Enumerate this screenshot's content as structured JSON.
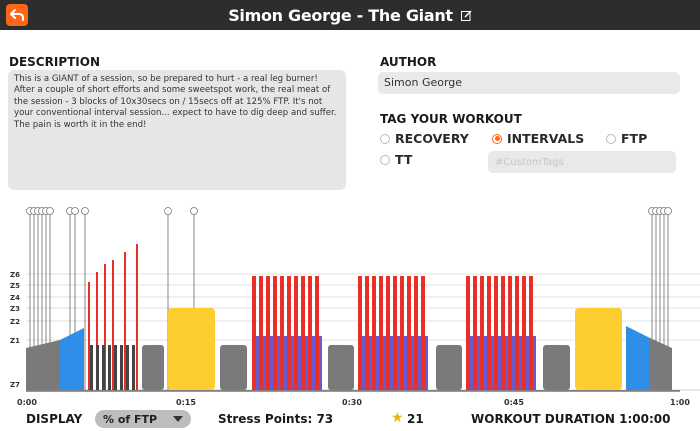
{
  "header": {
    "title": "Simon George - The Giant",
    "back_icon": "back-arrow-icon",
    "edit_icon": "edit-icon"
  },
  "description": {
    "heading": "DESCRIPTION",
    "text": "This is a GIANT of a session, so be prepared to hurt - a real leg burner! After a couple of short efforts and some sweetspot work, the real meat of the session - 3 blocks of 10x30secs on / 15secs off at 125% FTP. It's not your conventional interval session... expect to have to dig deep and suffer. The pain is worth it in the end!"
  },
  "author": {
    "heading": "AUTHOR",
    "value": "Simon George"
  },
  "tags": {
    "heading": "TAG YOUR WORKOUT",
    "options": [
      {
        "label": "RECOVERY",
        "selected": false
      },
      {
        "label": "INTERVALS",
        "selected": true
      },
      {
        "label": "FTP",
        "selected": false
      },
      {
        "label": "TT",
        "selected": false
      }
    ],
    "custom_placeholder": "#CustomTags"
  },
  "chart": {
    "zone_labels": [
      "Z6",
      "Z5",
      "Z4",
      "Z3",
      "Z2",
      "Z1",
      "Z7"
    ],
    "time_labels": [
      "0:00",
      "0:15",
      "0:30",
      "0:45",
      "1:00"
    ],
    "colors": {
      "gray": "#7a7a7a",
      "blue": "#2f8fe8",
      "yellow": "#fecd2f",
      "red": "#e8302a",
      "accent": "#fc6719"
    }
  },
  "footer": {
    "display_label": "DISPLAY",
    "display_value": "% of FTP",
    "stress": "Stress Points: 73",
    "star_icon": "star-icon",
    "rating": "21",
    "duration": "WORKOUT DURATION 1:00:00"
  }
}
